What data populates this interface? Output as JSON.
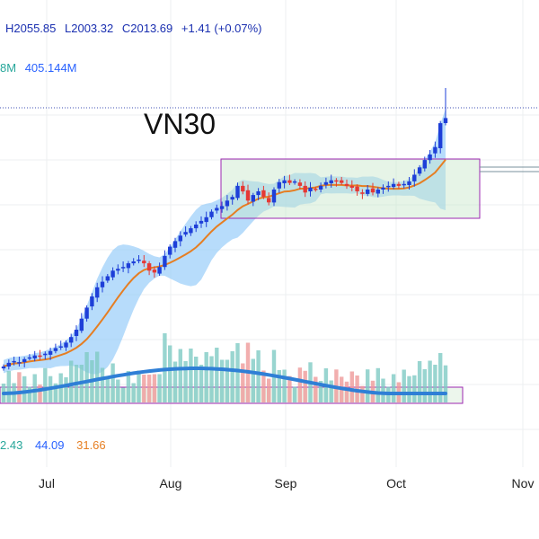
{
  "header": {
    "high": "H2055.85",
    "low": "L2003.32",
    "close": "C2013.69",
    "change": "+1.41 (+0.07%)"
  },
  "volume_legend": {
    "value_a": "8M",
    "value_b": "405.144M"
  },
  "oscillator_legend": {
    "value_a": "2.43",
    "value_b": "44.09",
    "value_c": "31.66"
  },
  "annotation": "VN30",
  "colors": {
    "up": "#1e3fd8",
    "down": "#e53935",
    "band": "#90caf9",
    "ma": "#e67e22",
    "vol_ma": "#2f7fd6",
    "vol_up": "#80cbc4",
    "vol_down": "#ef9a9a",
    "box": "#9c27b0",
    "price_line": "#3f51b5"
  },
  "chart_data": {
    "type": "candlestick",
    "title": "VN30",
    "x_ticks": [
      "Jul",
      "Aug",
      "Sep",
      "Oct",
      "Nov"
    ],
    "last_candle": {
      "high": 2055.85,
      "low": 2003.32,
      "close": 2013.69,
      "change": 1.41,
      "change_pct": 0.07
    },
    "close_path": [
      1340,
      1350,
      1355,
      1352,
      1360,
      1365,
      1370,
      1368,
      1375,
      1382,
      1390,
      1395,
      1405,
      1420,
      1440,
      1470,
      1500,
      1530,
      1555,
      1570,
      1585,
      1600,
      1605,
      1610,
      1620,
      1625,
      1630,
      1620,
      1600,
      1595,
      1610,
      1640,
      1665,
      1680,
      1695,
      1705,
      1715,
      1725,
      1735,
      1745,
      1760,
      1770,
      1775,
      1790,
      1800,
      1830,
      1815,
      1790,
      1805,
      1815,
      1800,
      1785,
      1820,
      1840,
      1845,
      1838,
      1842,
      1830,
      1812,
      1825,
      1820,
      1830,
      1840,
      1845,
      1842,
      1838,
      1830,
      1825,
      1815,
      1808,
      1820,
      1812,
      1820,
      1825,
      1830,
      1835,
      1830,
      1835,
      1842,
      1860,
      1880,
      1900,
      1915,
      1935,
      2000,
      2013.69
    ],
    "volume": {
      "ma_latest": 405.144,
      "unit": "M"
    },
    "oscillator": {
      "values": [
        2.43,
        44.09,
        31.66
      ]
    }
  }
}
